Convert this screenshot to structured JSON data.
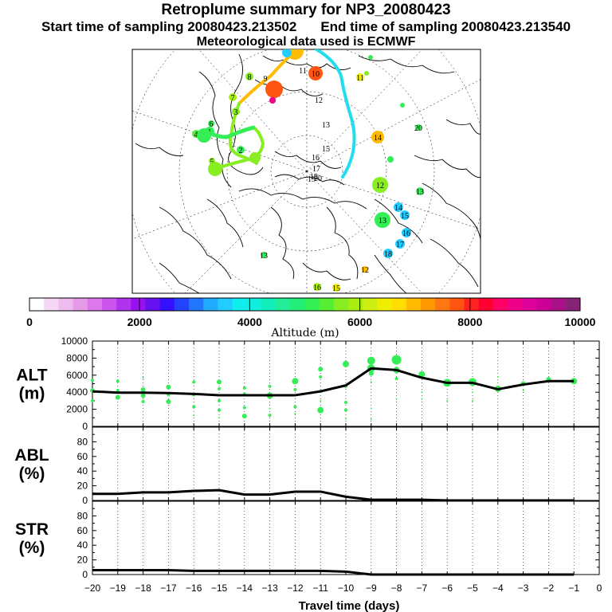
{
  "header": {
    "title": "Retroplume summary for NP3_20080423",
    "start_time": "Start time of sampling 20080423.213502",
    "end_time": "End time of sampling 20080423.213540",
    "meteo": "Meteorological data used is ECMWF"
  },
  "colorbar": {
    "title": "Altitude (m)",
    "tick_labels": [
      "0",
      "2000",
      "4000",
      "6000",
      "8000",
      "10000"
    ],
    "colors": [
      "#ffffff",
      "#f6d8f6",
      "#eebbee",
      "#e69be6",
      "#dd77ee",
      "#cc55ee",
      "#b133ee",
      "#9911ee",
      "#6611ee",
      "#3311ff",
      "#2244ff",
      "#2277ff",
      "#22aaff",
      "#22ccff",
      "#11eeee",
      "#11eedd",
      "#11eebb",
      "#22ee99",
      "#22ee77",
      "#33ee55",
      "#55ee33",
      "#88ee22",
      "#aaee11",
      "#ccee11",
      "#eeee00",
      "#ffdd00",
      "#ffbb00",
      "#ff9900",
      "#ff7711",
      "#ff5511",
      "#ff2222",
      "#ff0033",
      "#ff0066",
      "#ee0088",
      "#dd0099",
      "#cc0099",
      "#aa1188",
      "#882277"
    ]
  },
  "map": {
    "trajectory_labels": [
      {
        "t": "1",
        "c": "#33ee55"
      },
      {
        "t": "2",
        "c": "#33ee55"
      },
      {
        "t": "3",
        "c": "#88ee22"
      },
      {
        "t": "4",
        "c": "#55ee33"
      },
      {
        "t": "5",
        "c": "#88ee22"
      },
      {
        "t": "6",
        "c": "#33ee55"
      },
      {
        "t": "7",
        "c": "#aaee11"
      },
      {
        "t": "8",
        "c": "#88ee22"
      },
      {
        "t": "9",
        "c": "#ffffff"
      },
      {
        "t": "10",
        "c": "#ff5511"
      },
      {
        "t": "11",
        "c": "#ffffff"
      },
      {
        "t": "12",
        "c": "#ffffff"
      },
      {
        "t": "13",
        "c": "#ffffff"
      },
      {
        "t": "14",
        "c": "#ffbb00"
      },
      {
        "t": "15",
        "c": "#ffffff"
      },
      {
        "t": "16",
        "c": "#ffffff"
      },
      {
        "t": "17",
        "c": "#ffffff"
      },
      {
        "t": "18",
        "c": "#ffffff"
      },
      {
        "t": "19",
        "c": "#ffffff"
      },
      {
        "t": "20",
        "c": "#ffffff"
      },
      {
        "t": "12",
        "c": "#88ee22"
      },
      {
        "t": "13",
        "c": "#33ee55"
      },
      {
        "t": "14",
        "c": "#22ccff"
      },
      {
        "t": "15",
        "c": "#22ccff"
      },
      {
        "t": "16",
        "c": "#22ccff"
      },
      {
        "t": "17",
        "c": "#22ccff"
      },
      {
        "t": "18",
        "c": "#22ccff"
      },
      {
        "t": "16",
        "c": "#aaee11"
      },
      {
        "t": "15",
        "c": "#eeee00"
      },
      {
        "t": "13",
        "c": "#33ee55"
      },
      {
        "t": "11",
        "c": "#eeee00"
      },
      {
        "t": "20",
        "c": "#33ee55"
      },
      {
        "t": "12",
        "c": "#ffbb00"
      },
      {
        "t": "13",
        "c": "#33ee55"
      }
    ]
  },
  "chart_data": [
    {
      "type": "scatter",
      "panel": "ALT",
      "title": "ALT",
      "unit": "(m)",
      "ylim": [
        0,
        10000
      ],
      "y_ticks": [
        0,
        2000,
        4000,
        6000,
        8000,
        10000
      ],
      "xlim": [
        -20,
        0
      ],
      "mean_line": {
        "x": [
          -20,
          -19,
          -18,
          -17,
          -16,
          -15,
          -14,
          -13,
          -12,
          -11,
          -10,
          -9,
          -8,
          -7,
          -6,
          -5,
          -4,
          -3,
          -2,
          -1
        ],
        "y": [
          4100,
          3950,
          3950,
          3900,
          3800,
          3650,
          3650,
          3650,
          3650,
          4100,
          4800,
          6800,
          6600,
          5700,
          5100,
          5100,
          4350,
          4900,
          5300,
          5300
        ]
      },
      "clusters": [
        {
          "x": -20,
          "points": [
            [
              5400,
              2
            ],
            [
              4200,
              3
            ],
            [
              3000,
              2
            ]
          ]
        },
        {
          "x": -19,
          "points": [
            [
              5300,
              2
            ],
            [
              4200,
              2
            ],
            [
              3400,
              3
            ]
          ]
        },
        {
          "x": -18,
          "points": [
            [
              5700,
              1
            ],
            [
              4300,
              3
            ],
            [
              3600,
              3
            ],
            [
              2900,
              2
            ]
          ]
        },
        {
          "x": -17,
          "points": [
            [
              4600,
              3
            ],
            [
              3700,
              2
            ],
            [
              2900,
              3
            ]
          ]
        },
        {
          "x": -16,
          "points": [
            [
              5200,
              2
            ],
            [
              3700,
              2
            ],
            [
              2300,
              2
            ],
            [
              1300,
              1
            ]
          ]
        },
        {
          "x": -15,
          "points": [
            [
              5200,
              3
            ],
            [
              4400,
              2
            ],
            [
              3000,
              2
            ],
            [
              1900,
              2
            ],
            [
              1000,
              1
            ]
          ]
        },
        {
          "x": -14,
          "points": [
            [
              4500,
              2
            ],
            [
              3800,
              2
            ],
            [
              2200,
              2
            ],
            [
              1200,
              3
            ]
          ]
        },
        {
          "x": -13,
          "points": [
            [
              4700,
              2
            ],
            [
              3600,
              4
            ],
            [
              2100,
              1
            ],
            [
              1300,
              2
            ]
          ]
        },
        {
          "x": -12,
          "points": [
            [
              5300,
              4
            ],
            [
              4300,
              2
            ],
            [
              2300,
              2
            ],
            [
              1500,
              1
            ]
          ]
        },
        {
          "x": -11,
          "points": [
            [
              6700,
              3
            ],
            [
              5800,
              2
            ],
            [
              4100,
              2
            ],
            [
              3000,
              1
            ],
            [
              1900,
              4
            ]
          ]
        },
        {
          "x": -10,
          "points": [
            [
              7300,
              4
            ],
            [
              4700,
              2
            ],
            [
              2800,
              2
            ],
            [
              1900,
              2
            ],
            [
              900,
              1
            ]
          ]
        },
        {
          "x": -9,
          "points": [
            [
              7700,
              5
            ],
            [
              6800,
              5
            ],
            [
              6200,
              3
            ],
            [
              5200,
              1
            ],
            [
              2100,
              1
            ],
            [
              800,
              1
            ]
          ]
        },
        {
          "x": -8,
          "points": [
            [
              7800,
              6
            ],
            [
              6600,
              4
            ],
            [
              5600,
              2
            ],
            [
              3200,
              1
            ]
          ]
        },
        {
          "x": -7,
          "points": [
            [
              6100,
              4
            ],
            [
              4000,
              1
            ],
            [
              3200,
              1
            ]
          ]
        },
        {
          "x": -6,
          "points": [
            [
              5100,
              5
            ],
            [
              3000,
              1
            ]
          ]
        },
        {
          "x": -5,
          "points": [
            [
              5200,
              5
            ],
            [
              4000,
              1
            ],
            [
              3000,
              1
            ]
          ]
        },
        {
          "x": -4,
          "points": [
            [
              5800,
              1
            ],
            [
              4400,
              4
            ]
          ]
        },
        {
          "x": -3,
          "points": [
            [
              5000,
              3
            ],
            [
              4200,
              1
            ]
          ]
        },
        {
          "x": -2,
          "points": [
            [
              5500,
              3
            ]
          ]
        },
        {
          "x": -1,
          "points": [
            [
              5300,
              4
            ]
          ]
        }
      ]
    },
    {
      "type": "line",
      "panel": "ABL",
      "title": "ABL",
      "unit": "(%)",
      "ylim": [
        0,
        100
      ],
      "y_ticks": [
        0,
        20,
        40,
        60,
        80
      ],
      "x": [
        -20,
        -19,
        -18,
        -17,
        -16,
        -15,
        -14,
        -13,
        -12,
        -11,
        -10,
        -9,
        -8,
        -7,
        -6,
        -5,
        -4,
        -3,
        -2,
        -1
      ],
      "y": [
        9,
        9,
        11,
        11,
        13,
        14,
        8,
        8,
        12,
        12,
        5,
        1,
        1,
        1,
        0,
        0,
        0,
        0,
        0,
        0
      ]
    },
    {
      "type": "line",
      "panel": "STR",
      "title": "STR",
      "unit": "(%)",
      "ylim": [
        0,
        100
      ],
      "y_ticks": [
        0,
        20,
        40,
        60,
        80
      ],
      "x": [
        -20,
        -19,
        -18,
        -17,
        -16,
        -15,
        -14,
        -13,
        -12,
        -11,
        -10,
        -9,
        -8,
        -7,
        -6,
        -5,
        -4,
        -3,
        -2,
        -1
      ],
      "y": [
        6,
        6,
        6,
        6,
        5,
        5,
        5,
        5,
        5,
        5,
        4,
        0,
        0,
        0,
        0,
        0,
        0,
        0,
        0,
        0
      ]
    }
  ],
  "x_axis": {
    "label": "Travel time (days)",
    "tick_labels": [
      "−20",
      "−19",
      "−18",
      "−17",
      "−16",
      "−15",
      "−14",
      "−13",
      "−12",
      "−11",
      "−10",
      "−9",
      "−8",
      "−7",
      "−6",
      "−5",
      "−4",
      "−3",
      "−2",
      "−1",
      "0"
    ]
  }
}
